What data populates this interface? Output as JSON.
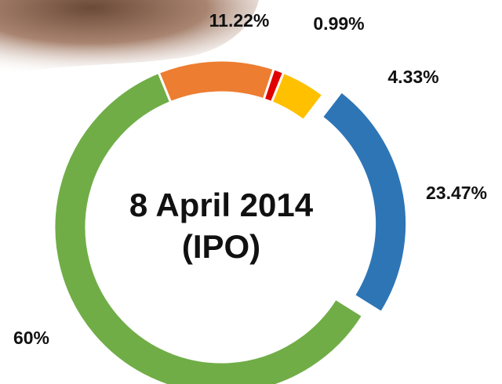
{
  "chart_data": {
    "type": "donut",
    "values": [
      11.22,
      0.99,
      4.33,
      23.47,
      60
    ],
    "value_labels": [
      "11.22%",
      "0.99%",
      "4.33%",
      "23.47%",
      "60%"
    ],
    "colors": [
      "#ed7d31",
      "#e00000",
      "#ffc000",
      "#2e75b6",
      "#70ad47"
    ],
    "exploded": [
      false,
      false,
      false,
      true,
      false
    ],
    "center_label": [
      "8 April 2014",
      "(IPO)"
    ]
  }
}
